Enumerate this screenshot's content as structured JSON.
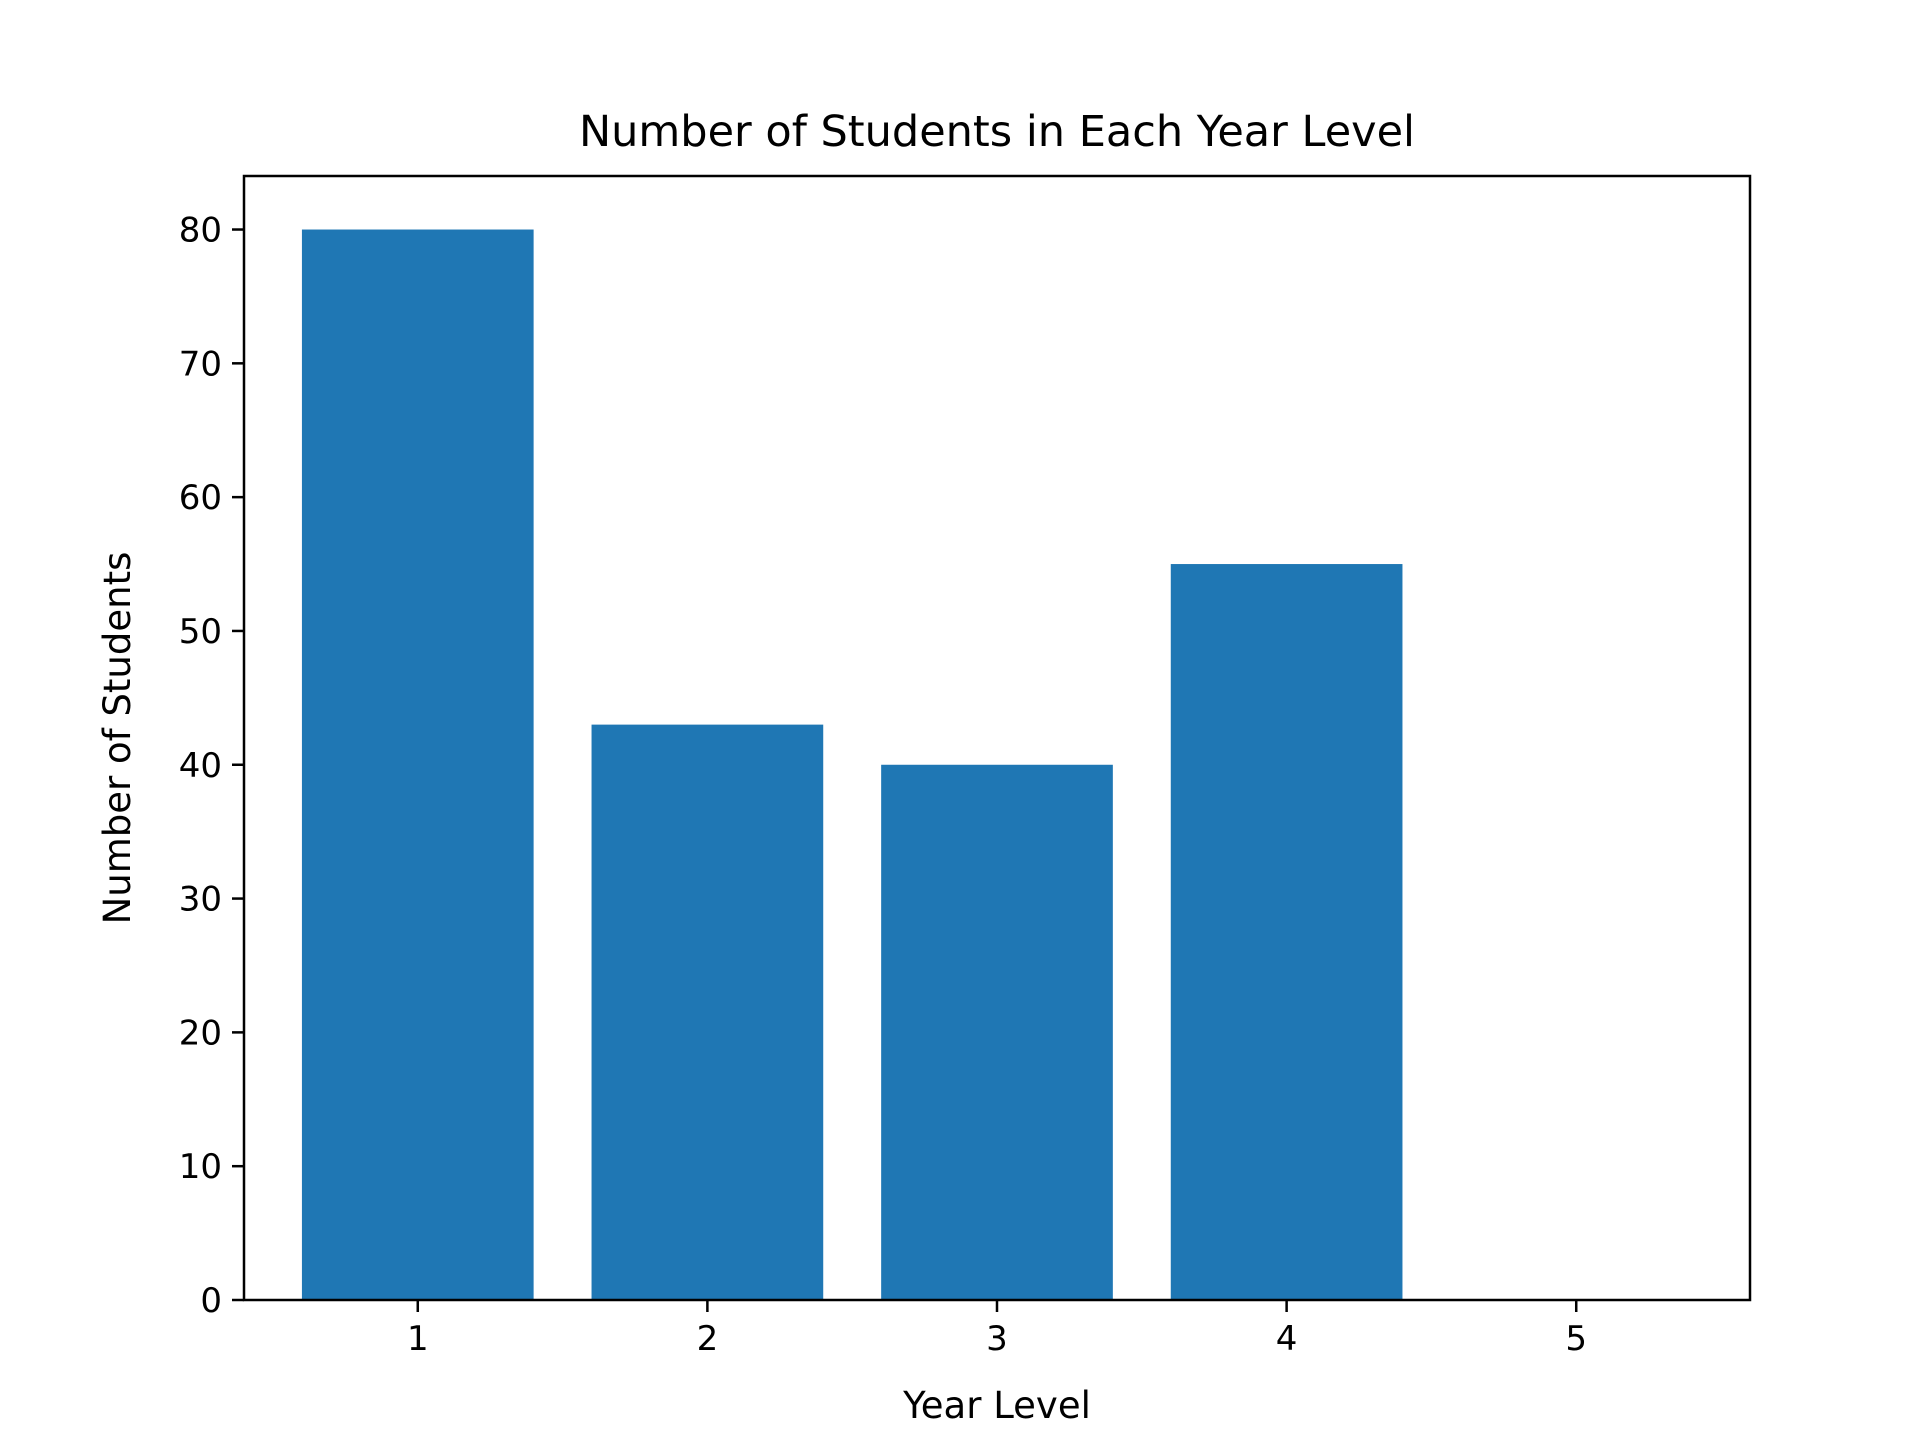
{
  "chart_data": {
    "type": "bar",
    "title": "Number of Students in Each Year Level",
    "xlabel": "Year Level",
    "ylabel": "Number of Students",
    "categories": [
      "1",
      "2",
      "3",
      "4",
      "5"
    ],
    "values": [
      80,
      43,
      40,
      55,
      0
    ],
    "ylim": [
      0,
      84
    ],
    "yticks": [
      0,
      10,
      20,
      30,
      40,
      50,
      60,
      70,
      80
    ],
    "grid": false,
    "legend": "none",
    "bar_color": "#1f77b4"
  }
}
